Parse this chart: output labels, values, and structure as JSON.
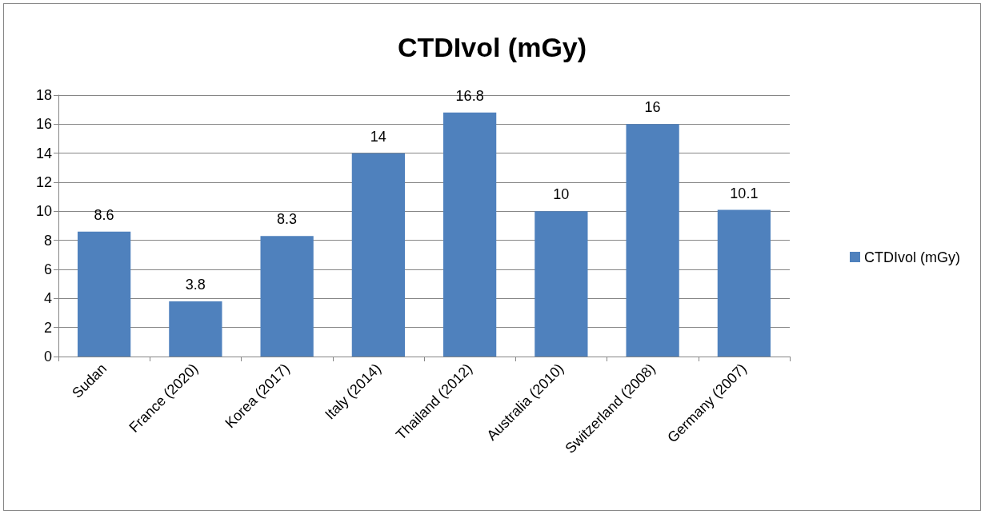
{
  "chart_data": {
    "type": "bar",
    "title": "CTDIvol (mGy)",
    "categories": [
      "Sudan",
      "France (2020)",
      "Korea (2017)",
      "Italy (2014)",
      "Thailand (2012)",
      "Australia (2010)",
      "Switzerland (2008)",
      "Germany (2007)"
    ],
    "series": [
      {
        "name": "CTDIvol (mGy)",
        "color": "#4f81bd",
        "values": [
          8.6,
          3.8,
          8.3,
          14,
          16.8,
          10,
          16,
          10.1
        ]
      }
    ],
    "ylim": [
      0,
      18
    ],
    "yticks": [
      0,
      2,
      4,
      6,
      8,
      10,
      12,
      14,
      16,
      18
    ],
    "grid": "y",
    "legend": "right",
    "data_labels": true
  }
}
